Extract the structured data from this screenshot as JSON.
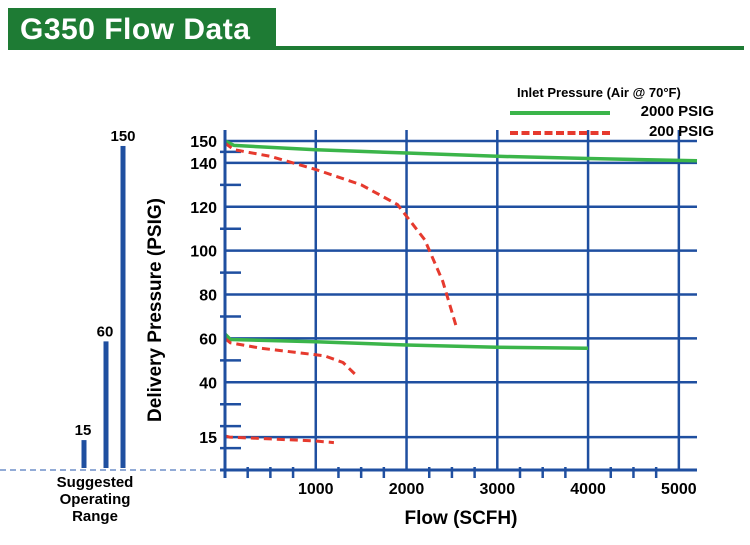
{
  "header": {
    "title": "G350 Flow Data"
  },
  "legend": {
    "title": "Inlet Pressure (Air @ 70°F)",
    "entries": [
      {
        "label": "2000 PSIG",
        "color": "#3bb54a",
        "style": "solid"
      },
      {
        "label": "200 PSIG",
        "color": "#e63a2e",
        "style": "dashed"
      }
    ]
  },
  "operating_range": {
    "caption": "Suggested Operating Range",
    "bars": [
      {
        "label": "15",
        "value": 15
      },
      {
        "label": "60",
        "value": 60
      },
      {
        "label": "150",
        "value": 150
      }
    ],
    "color": "#1f4fa0"
  },
  "chart_data": {
    "type": "line",
    "xlabel": "Flow (SCFH)",
    "ylabel": "Delivery Pressure (PSIG)",
    "xlim": [
      0,
      5200
    ],
    "ylim": [
      0,
      155
    ],
    "x_ticks": [
      "1000",
      "2000",
      "3000",
      "4000",
      "5000"
    ],
    "y_ticks": [
      "15",
      "40",
      "60",
      "80",
      "100",
      "120",
      "140",
      "150"
    ],
    "grid": true,
    "grid_color": "#1f4fa0",
    "series": [
      {
        "name": "2000 PSIG",
        "setpoint": 150,
        "color": "#3bb54a",
        "style": "solid",
        "x": [
          0,
          100,
          1000,
          2000,
          3000,
          4000,
          5200
        ],
        "y": [
          150,
          148,
          146,
          144.5,
          143,
          142,
          141
        ]
      },
      {
        "name": "2000 PSIG",
        "setpoint": 60,
        "color": "#3bb54a",
        "style": "solid",
        "x": [
          0,
          60,
          1000,
          2000,
          3000,
          4000
        ],
        "y": [
          62,
          59.5,
          58.5,
          57,
          56,
          55.5
        ]
      },
      {
        "name": "200 PSIG",
        "setpoint": 150,
        "color": "#e63a2e",
        "style": "dashed",
        "x": [
          0,
          100,
          500,
          1000,
          1500,
          1900,
          2200,
          2400,
          2550
        ],
        "y": [
          149,
          146,
          143,
          137,
          130,
          121,
          105,
          86,
          65
        ]
      },
      {
        "name": "200 PSIG",
        "setpoint": 60,
        "color": "#e63a2e",
        "style": "dashed",
        "x": [
          0,
          60,
          400,
          800,
          1100,
          1300,
          1450
        ],
        "y": [
          60,
          58,
          55.5,
          53.5,
          52,
          49,
          43
        ]
      },
      {
        "name": "200 PSIG",
        "setpoint": 15,
        "color": "#e63a2e",
        "style": "dashed",
        "x": [
          0,
          50,
          500,
          1000,
          1200
        ],
        "y": [
          15.5,
          15,
          14.2,
          13.2,
          12.5
        ]
      }
    ]
  }
}
